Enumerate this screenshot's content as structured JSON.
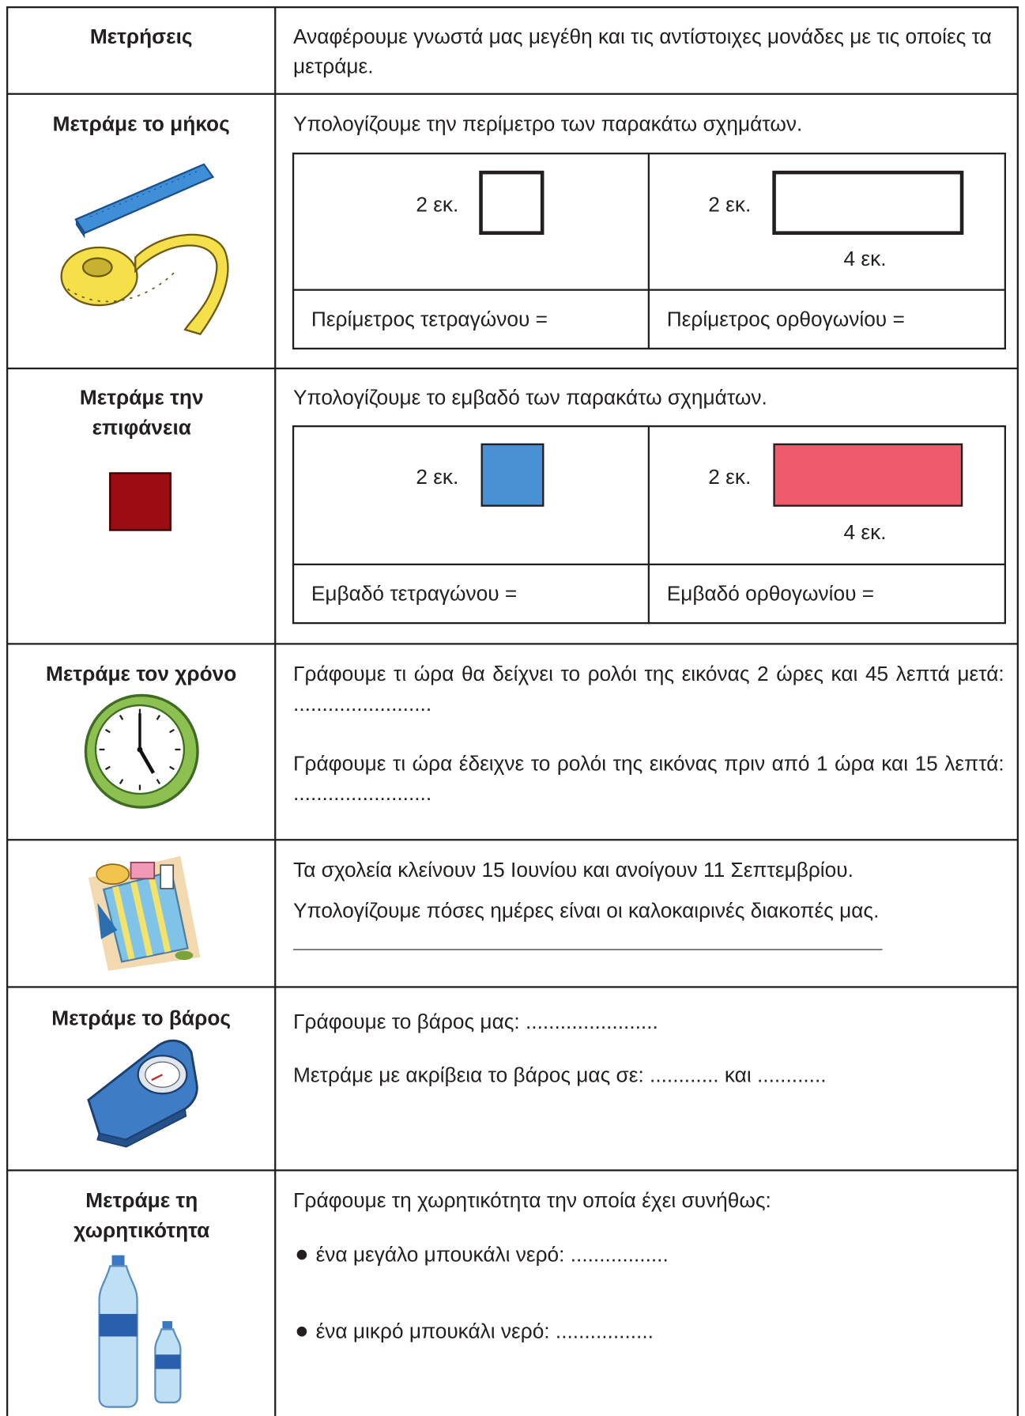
{
  "rows": [
    {
      "title": "Μετρήσεις",
      "text": "Αναφέρουμε γνωστά μας μεγέθη και τις αντίστοιχες μονάδες με τις οποίες τα μετράμε."
    },
    {
      "title": "Μετράμε το μήκος",
      "text": "Υπολογίζουμε την περίμετρο των παρακάτω σχημάτων.",
      "square_side": "2 εκ.",
      "rect_side": "2 εκ.",
      "rect_base": "4 εκ.",
      "square_answer": "Περίμετρος τετραγώνου =",
      "rect_answer": "Περίμετρος ορθογωνίου ="
    },
    {
      "title": "Μετράμε την επιφάνεια",
      "text": "Υπολογίζουμε το εμβαδό των παρακάτω σχημάτων.",
      "square_side": "2 εκ.",
      "rect_side": "2 εκ.",
      "rect_base": "4 εκ.",
      "square_answer": "Εμβαδό τετραγώνου  =",
      "rect_answer": "Εμβαδό ορθογωνίου ="
    },
    {
      "title": "Μετράμε τον χρόνο",
      "question_1": "Γράφουμε τι ώρα θα δείχνει το ρολόι της εικόνας 2 ώρες και 45 λεπτά μετά: ........................",
      "question_2": "Γράφουμε τι ώρα έδειχνε το ρολόι της εικόνας πριν από 1 ώρα και 15 λεπτά: ........................"
    },
    {
      "text_1": "Τα σχολεία κλείνουν 15 Ιουνίου και ανοίγουν 11 Σεπτεμβρίου.",
      "text_2": "Υπολογίζουμε πόσες ημέρες είναι οι καλοκαιρινές διακοπές μας."
    },
    {
      "title": "Μετράμε το βάρος",
      "question_1": "Γράφουμε το βάρος μας: .......................",
      "question_2": "Μετράμε με ακρίβεια το βάρος μας σε: ............ και ............"
    },
    {
      "title": "Μετράμε τη χωρητικότητα",
      "text": "Γράφουμε τη χωρητικότητα την οποία έχει συνήθως:",
      "bullet_1": "ένα μεγάλο μπουκάλι νερό: .................",
      "bullet_2": "ένα μικρό μπουκάλι νερό: ................."
    }
  ]
}
